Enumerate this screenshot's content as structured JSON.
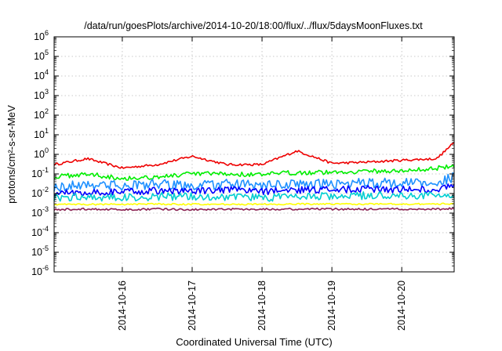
{
  "chart_data": {
    "type": "line",
    "title": "/data/run/goesPlots/archive/2014-10-20/18:00/flux/../flux/5daysMoonFluxes.txt",
    "xlabel": "Coordinated Universal Time (UTC)",
    "ylabel": "protons/cm²-s-sr-MeV",
    "yscale": "log",
    "ylim": [
      1e-06,
      1000000.0
    ],
    "xlim": [
      "2014-10-15T00:35",
      "2014-10-20T18:00"
    ],
    "grid": true,
    "legend": "none",
    "x_tick_labels": [
      "2014-10-16",
      "2014-10-17",
      "2014-10-18",
      "2014-10-19",
      "2014-10-20"
    ],
    "y_tick_labels": [
      {
        "base": "10",
        "exp": "-6"
      },
      {
        "base": "10",
        "exp": "-5"
      },
      {
        "base": "10",
        "exp": "-4"
      },
      {
        "base": "10",
        "exp": "-3"
      },
      {
        "base": "10",
        "exp": "-2"
      },
      {
        "base": "10",
        "exp": "-1"
      },
      {
        "base": "10",
        "exp": "0"
      },
      {
        "base": "10",
        "exp": "1"
      },
      {
        "base": "10",
        "exp": "2"
      },
      {
        "base": "10",
        "exp": "3"
      },
      {
        "base": "10",
        "exp": "4"
      },
      {
        "base": "10",
        "exp": "5"
      },
      {
        "base": "10",
        "exp": "6"
      }
    ],
    "x_dates": [
      "2014-10-15T00:35",
      "2014-10-15T12:00",
      "2014-10-16T00:00",
      "2014-10-16T12:00",
      "2014-10-17T00:00",
      "2014-10-17T12:00",
      "2014-10-18T00:00",
      "2014-10-18T12:00",
      "2014-10-19T00:00",
      "2014-10-19T12:00",
      "2014-10-20T00:00",
      "2014-10-20T12:00",
      "2014-10-20T18:00"
    ],
    "series": [
      {
        "color": "#ee0000",
        "noise": 0.06,
        "values": [
          0.3,
          0.6,
          0.2,
          0.3,
          0.8,
          0.3,
          0.3,
          1.5,
          0.35,
          0.4,
          0.5,
          0.6,
          4.0
        ]
      },
      {
        "color": "#00ee00",
        "noise": 0.12,
        "values": [
          0.07,
          0.1,
          0.06,
          0.07,
          0.1,
          0.1,
          0.09,
          0.12,
          0.12,
          0.14,
          0.14,
          0.2,
          0.25
        ]
      },
      {
        "color": "#1e90ff",
        "noise": 0.25,
        "values": [
          0.02,
          0.03,
          0.025,
          0.03,
          0.025,
          0.03,
          0.025,
          0.03,
          0.03,
          0.035,
          0.035,
          0.035,
          0.07
        ]
      },
      {
        "color": "#0000ff",
        "noise": 0.18,
        "values": [
          0.01,
          0.012,
          0.012,
          0.014,
          0.013,
          0.015,
          0.013,
          0.015,
          0.016,
          0.017,
          0.016,
          0.016,
          0.03
        ]
      },
      {
        "color": "#00ced1",
        "noise": 0.2,
        "values": [
          0.006,
          0.007,
          0.006,
          0.007,
          0.007,
          0.007,
          0.006,
          0.007,
          0.007,
          0.008,
          0.008,
          0.008,
          0.009
        ]
      },
      {
        "color": "#ffff00",
        "noise": 0.04,
        "values": [
          0.0028,
          0.0028,
          0.0028,
          0.0029,
          0.0028,
          0.0028,
          0.0028,
          0.0029,
          0.0029,
          0.0029,
          0.0029,
          0.0029,
          0.003
        ]
      },
      {
        "color": "#8b2252",
        "noise": 0.05,
        "values": [
          0.0015,
          0.0016,
          0.0015,
          0.0016,
          0.0015,
          0.0016,
          0.0016,
          0.0016,
          0.0016,
          0.0016,
          0.0016,
          0.0016,
          0.0017
        ]
      }
    ]
  }
}
